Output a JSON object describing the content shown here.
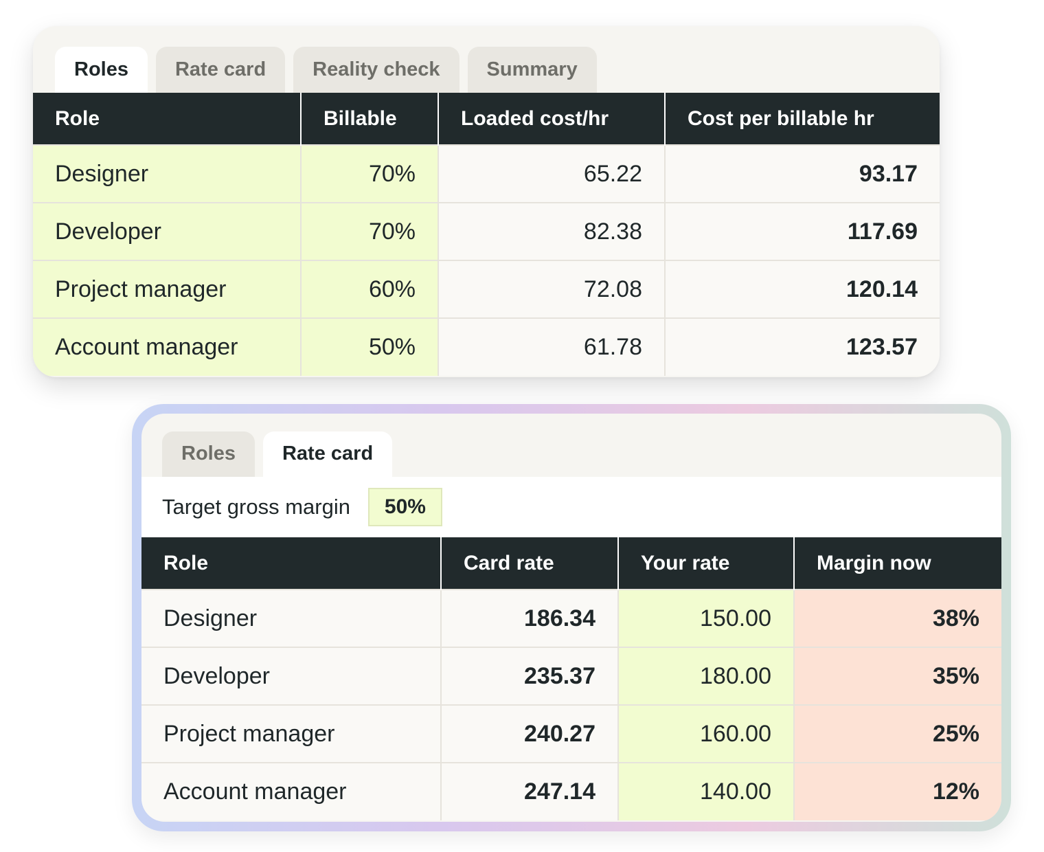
{
  "card1": {
    "tabs": [
      {
        "label": "Roles",
        "active": true
      },
      {
        "label": "Rate card",
        "active": false
      },
      {
        "label": "Reality check",
        "active": false
      },
      {
        "label": "Summary",
        "active": false
      }
    ],
    "columns": [
      "Role",
      "Billable",
      "Loaded cost/hr",
      "Cost per billable hr"
    ],
    "rows": [
      {
        "role": "Designer",
        "billable": "70%",
        "loaded_cost": "65.22",
        "cost_per_billable": "93.17"
      },
      {
        "role": "Developer",
        "billable": "70%",
        "loaded_cost": "82.38",
        "cost_per_billable": "117.69"
      },
      {
        "role": "Project manager",
        "billable": "60%",
        "loaded_cost": "72.08",
        "cost_per_billable": "120.14"
      },
      {
        "role": "Account manager",
        "billable": "50%",
        "loaded_cost": "61.78",
        "cost_per_billable": "123.57"
      }
    ]
  },
  "card2": {
    "tabs": [
      {
        "label": "Roles",
        "active": false
      },
      {
        "label": "Rate card",
        "active": true
      }
    ],
    "target_margin": {
      "label": "Target gross margin",
      "value": "50%"
    },
    "columns": [
      "Role",
      "Card rate",
      "Your rate",
      "Margin now"
    ],
    "rows": [
      {
        "role": "Designer",
        "card_rate": "186.34",
        "your_rate": "150.00",
        "margin_now": "38%"
      },
      {
        "role": "Developer",
        "card_rate": "235.37",
        "your_rate": "180.00",
        "margin_now": "35%"
      },
      {
        "role": "Project manager",
        "card_rate": "240.27",
        "your_rate": "160.00",
        "margin_now": "25%"
      },
      {
        "role": "Account manager",
        "card_rate": "247.14",
        "your_rate": "140.00",
        "margin_now": "12%"
      }
    ]
  },
  "colors": {
    "header_bg": "#212a2c",
    "input_lime": "#f2fcd0",
    "warning_peach": "#fde2d5",
    "card_bg": "#f6f5f1"
  }
}
